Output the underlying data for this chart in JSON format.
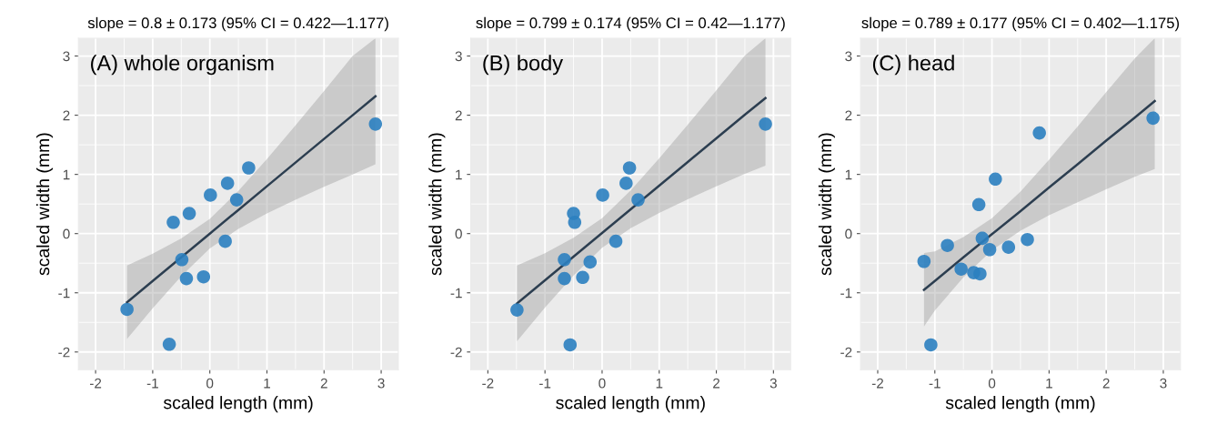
{
  "chart_data": [
    {
      "type": "scatter",
      "title": "slope = 0.8 ± 0.173 (95% CI = 0.422—1.177)",
      "xlabel": "scaled length (mm)",
      "ylabel": "scaled width (mm)",
      "annotations": [
        "(A) whole organism"
      ],
      "xlim": [
        -2.3,
        3.3
      ],
      "ylim": [
        -2.3,
        3.3
      ],
      "xticks": [
        -2,
        -1,
        0,
        1,
        2,
        3
      ],
      "yticks": [
        -2,
        -1,
        0,
        1,
        2,
        3
      ],
      "grid": true,
      "marker": "circle",
      "series": [
        {
          "color": "#2b7fc0",
          "x": [
            -1.45,
            -0.71,
            -0.64,
            -0.36,
            -0.49,
            -0.41,
            -0.11,
            0.01,
            0.27,
            0.31,
            0.47,
            0.68,
            2.9
          ],
          "values": [
            -1.28,
            -1.87,
            0.19,
            0.34,
            -0.44,
            -0.76,
            -0.73,
            0.65,
            -0.13,
            0.85,
            0.57,
            1.11,
            1.85
          ]
        },
        {
          "type": "line",
          "marker": "none",
          "color": "#2c3e50",
          "x": [
            -1.45,
            -1,
            -0.5,
            0,
            0.5,
            1,
            1.5,
            2,
            2.5,
            2.9
          ],
          "values": [
            -1.16,
            -0.8,
            -0.4,
            0,
            0.4,
            0.8,
            1.2,
            1.6,
            2.0,
            2.32
          ],
          "lower": [
            -1.78,
            -1.26,
            -0.72,
            -0.25,
            0.08,
            0.34,
            0.57,
            0.79,
            1.0,
            1.17
          ],
          "upper": [
            -0.54,
            -0.34,
            -0.08,
            0.25,
            0.72,
            1.26,
            1.83,
            2.41,
            3.0,
            3.3
          ]
        }
      ]
    },
    {
      "type": "scatter",
      "title": "slope = 0.799 ± 0.174 (95% CI = 0.42—1.177)",
      "xlabel": "scaled length (mm)",
      "ylabel": "scaled width (mm)",
      "annotations": [
        "(B) body"
      ],
      "xlim": [
        -2.3,
        3.3
      ],
      "ylim": [
        -2.3,
        3.3
      ],
      "xticks": [
        -2,
        -1,
        0,
        1,
        2,
        3
      ],
      "yticks": [
        -2,
        -1,
        0,
        1,
        2,
        3
      ],
      "grid": true,
      "marker": "circle",
      "series": [
        {
          "color": "#2b7fc0",
          "x": [
            -1.49,
            -0.56,
            -0.66,
            -0.66,
            -0.5,
            -0.48,
            -0.34,
            -0.21,
            0.01,
            0.24,
            0.42,
            0.48,
            0.63,
            2.86
          ],
          "values": [
            -1.29,
            -1.88,
            -0.44,
            -0.76,
            0.34,
            0.19,
            -0.74,
            -0.48,
            0.65,
            -0.13,
            0.85,
            1.11,
            0.57,
            1.85
          ]
        },
        {
          "type": "line",
          "marker": "none",
          "color": "#2c3e50",
          "x": [
            -1.49,
            -1,
            -0.5,
            0,
            0.5,
            1,
            1.5,
            2,
            2.5,
            2.86
          ],
          "values": [
            -1.18,
            -0.79,
            -0.39,
            0.01,
            0.41,
            0.81,
            1.21,
            1.61,
            2.01,
            2.29
          ],
          "lower": [
            -1.82,
            -1.25,
            -0.71,
            -0.24,
            0.09,
            0.35,
            0.58,
            0.8,
            1.01,
            1.15
          ],
          "upper": [
            -0.54,
            -0.33,
            -0.07,
            0.26,
            0.73,
            1.27,
            1.84,
            2.42,
            3.01,
            3.3
          ]
        }
      ]
    },
    {
      "type": "scatter",
      "title": "slope = 0.789 ± 0.177 (95% CI = 0.402—1.175)",
      "xlabel": "scaled length (mm)",
      "ylabel": "scaled width (mm)",
      "annotations": [
        "(C) head"
      ],
      "xlim": [
        -2.3,
        3.3
      ],
      "ylim": [
        -2.3,
        3.3
      ],
      "xticks": [
        -2,
        -1,
        0,
        1,
        2,
        3
      ],
      "yticks": [
        -2,
        -1,
        0,
        1,
        2,
        3
      ],
      "grid": true,
      "marker": "circle",
      "series": [
        {
          "color": "#2b7fc0",
          "x": [
            -1.19,
            -1.07,
            -0.78,
            -0.54,
            -0.32,
            -0.21,
            -0.23,
            -0.17,
            -0.04,
            0.06,
            0.29,
            0.62,
            0.83,
            2.82
          ],
          "values": [
            -0.47,
            -1.88,
            -0.2,
            -0.6,
            -0.66,
            -0.68,
            0.49,
            -0.08,
            -0.27,
            0.92,
            -0.23,
            -0.1,
            1.7,
            1.95
          ]
        },
        {
          "type": "line",
          "marker": "none",
          "color": "#2c3e50",
          "x": [
            -1.19,
            -1,
            -0.5,
            0,
            0.5,
            1,
            1.5,
            2,
            2.5,
            2.85
          ],
          "values": [
            -0.95,
            -0.8,
            -0.4,
            -0.01,
            0.38,
            0.78,
            1.17,
            1.57,
            1.96,
            2.24
          ],
          "lower": [
            -1.57,
            -1.3,
            -0.74,
            -0.28,
            0.05,
            0.31,
            0.53,
            0.75,
            0.96,
            1.09
          ],
          "upper": [
            -0.33,
            -0.3,
            -0.06,
            0.26,
            0.71,
            1.25,
            1.81,
            2.39,
            2.96,
            3.3
          ]
        }
      ]
    }
  ]
}
